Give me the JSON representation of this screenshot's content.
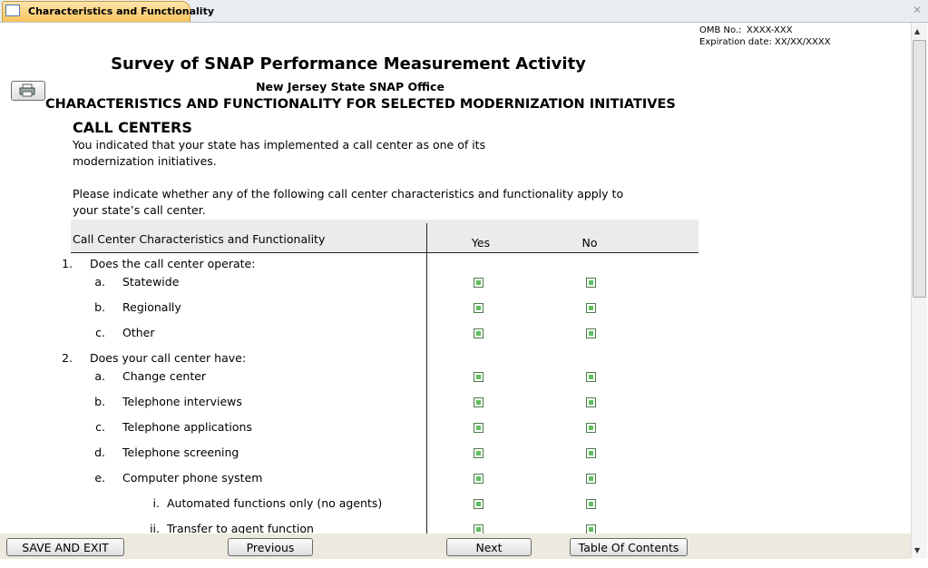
{
  "tab": {
    "title": "Characteristics and Functionality"
  },
  "omb": {
    "number_label": "OMB No.:",
    "number": "XXXX-XXX",
    "expiration_label": "Expiration date:",
    "expiration": "XX/XX/XXXX"
  },
  "header": {
    "title": "Survey of SNAP Performance Measurement Activity",
    "office": "New Jersey State SNAP Office",
    "section": "CHARACTERISTICS AND FUNCTIONALITY FOR SELECTED MODERNIZATION INITIATIVES"
  },
  "subsection": {
    "title": "CALL CENTERS",
    "intro": "You indicated that your state has implemented a call center as one of its modernization initiatives.",
    "instruction": "Please indicate whether any of the following call center characteristics and functionality apply to your state’s call center."
  },
  "table": {
    "columns": [
      "Call Center Characteristics and Functionality",
      "Yes",
      "No"
    ],
    "rows": [
      {
        "marker": "1.",
        "text": "Does the call center operate:",
        "level": 1,
        "checkboxes": false
      },
      {
        "marker": "a.",
        "text": "Statewide",
        "level": 2,
        "checkboxes": true
      },
      {
        "marker": "b.",
        "text": "Regionally",
        "level": 2,
        "checkboxes": true
      },
      {
        "marker": "c.",
        "text": "Other",
        "level": 2,
        "checkboxes": true
      },
      {
        "marker": "2.",
        "text": "Does your call center have:",
        "level": 1,
        "checkboxes": false
      },
      {
        "marker": "a.",
        "text": "Change center",
        "level": 2,
        "checkboxes": true
      },
      {
        "marker": "b.",
        "text": "Telephone interviews",
        "level": 2,
        "checkboxes": true
      },
      {
        "marker": "c.",
        "text": "Telephone applications",
        "level": 2,
        "checkboxes": true
      },
      {
        "marker": "d.",
        "text": "Telephone screening",
        "level": 2,
        "checkboxes": true
      },
      {
        "marker": "e.",
        "text": "Computer phone system",
        "level": 2,
        "checkboxes": true
      },
      {
        "marker": "i.",
        "text": "Automated functions only (no agents)",
        "level": 3,
        "checkboxes": true
      },
      {
        "marker": "ii.",
        "text": "Transfer to agent function",
        "level": 3,
        "checkboxes": true
      }
    ]
  },
  "buttons": [
    "SAVE AND EXIT",
    "Previous",
    "Next",
    "Table Of Contents"
  ]
}
